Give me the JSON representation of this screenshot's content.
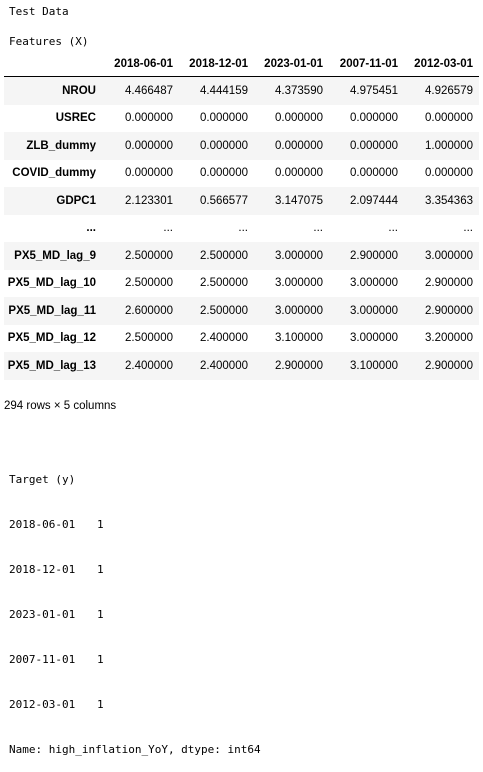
{
  "output": {
    "title": "Test Data",
    "features_label": "Features (X)",
    "shape_note": "294 rows × 5 columns"
  },
  "dataframe": {
    "columns": [
      "2018-06-01",
      "2018-12-01",
      "2023-01-01",
      "2007-11-01",
      "2012-03-01"
    ],
    "rows": [
      {
        "index": "NROU",
        "values": [
          "4.466487",
          "4.444159",
          "4.373590",
          "4.975451",
          "4.926579"
        ]
      },
      {
        "index": "USREC",
        "values": [
          "0.000000",
          "0.000000",
          "0.000000",
          "0.000000",
          "0.000000"
        ]
      },
      {
        "index": "ZLB_dummy",
        "values": [
          "0.000000",
          "0.000000",
          "0.000000",
          "0.000000",
          "1.000000"
        ]
      },
      {
        "index": "COVID_dummy",
        "values": [
          "0.000000",
          "0.000000",
          "0.000000",
          "0.000000",
          "0.000000"
        ]
      },
      {
        "index": "GDPC1",
        "values": [
          "2.123301",
          "0.566577",
          "3.147075",
          "2.097444",
          "3.354363"
        ]
      },
      {
        "index": "...",
        "values": [
          "...",
          "...",
          "...",
          "...",
          "..."
        ]
      },
      {
        "index": "PX5_MD_lag_9",
        "values": [
          "2.500000",
          "2.500000",
          "3.000000",
          "2.900000",
          "3.000000"
        ]
      },
      {
        "index": "PX5_MD_lag_10",
        "values": [
          "2.500000",
          "2.500000",
          "3.000000",
          "3.000000",
          "2.900000"
        ]
      },
      {
        "index": "PX5_MD_lag_11",
        "values": [
          "2.600000",
          "2.500000",
          "3.000000",
          "3.000000",
          "2.900000"
        ]
      },
      {
        "index": "PX5_MD_lag_12",
        "values": [
          "2.500000",
          "2.400000",
          "3.100000",
          "3.000000",
          "3.200000"
        ]
      },
      {
        "index": "PX5_MD_lag_13",
        "values": [
          "2.400000",
          "2.400000",
          "2.900000",
          "3.100000",
          "2.900000"
        ]
      }
    ]
  },
  "target": {
    "header": "Target (y)",
    "rows": [
      {
        "index": "2018-06-01",
        "value": "1"
      },
      {
        "index": "2018-12-01",
        "value": "1"
      },
      {
        "index": "2023-01-01",
        "value": "1"
      },
      {
        "index": "2007-11-01",
        "value": "1"
      },
      {
        "index": "2012-03-01",
        "value": "1"
      }
    ],
    "footer": "Name: high_inflation_YoY, dtype: int64"
  }
}
